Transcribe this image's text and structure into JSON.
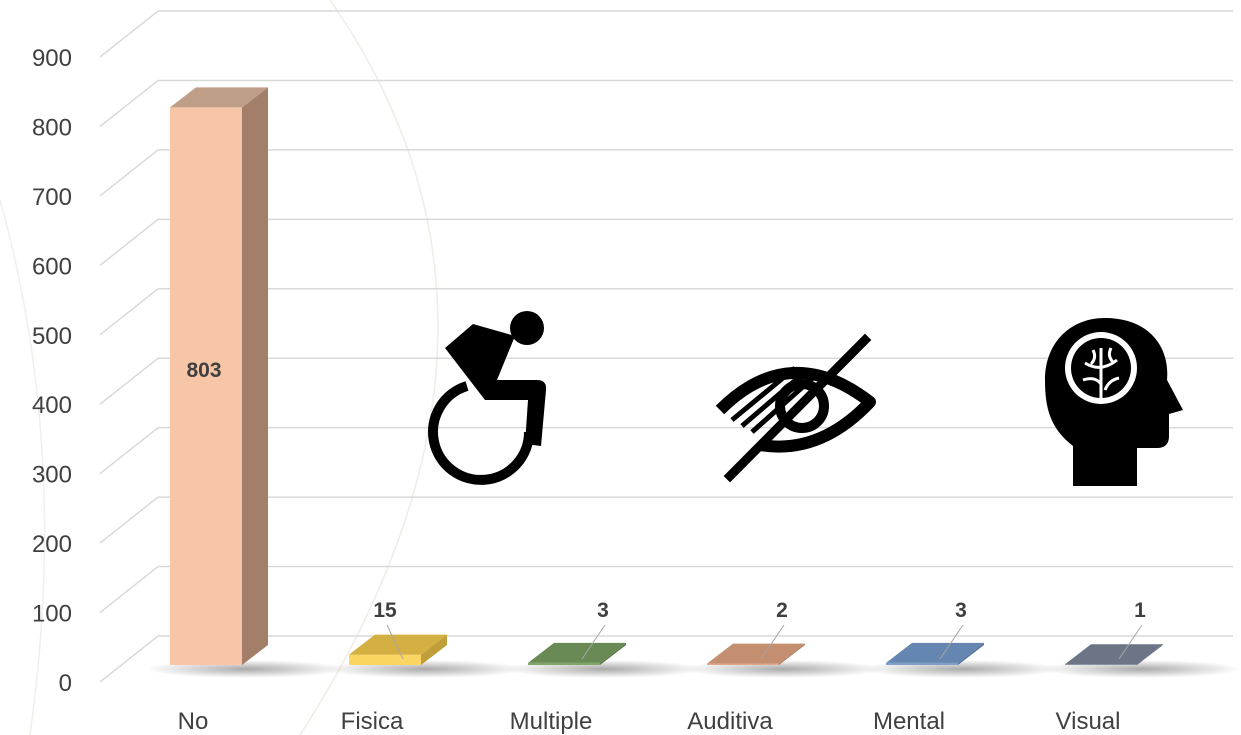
{
  "chart_data": {
    "type": "bar",
    "categories": [
      "No",
      "Fisica",
      "Multiple",
      "Auditiva",
      "Mental",
      "Visual"
    ],
    "values": [
      803,
      15,
      3,
      2,
      3,
      1
    ],
    "data_labels": [
      "803",
      "15",
      "3",
      "2",
      "3",
      "1"
    ],
    "y_ticks": [
      "0",
      "100",
      "200",
      "300",
      "400",
      "500",
      "600",
      "700",
      "800",
      "900"
    ],
    "ylim": [
      0,
      900
    ],
    "grid": true,
    "style": "3d-column",
    "colors": {
      "front": [
        "#f7c6a7",
        "#fbd561",
        "#7fa768",
        "#e0a887",
        "#7d9fc8",
        "#808b9c"
      ],
      "side": [
        "#a37f6a",
        "#c09f38",
        "#597946",
        "#a87f64",
        "#56749b",
        "#5d6676"
      ],
      "top": [
        "#bf9e88",
        "#d4b043",
        "#6a8a55",
        "#c48e70",
        "#6486b0",
        "#6b7586"
      ],
      "grid": "#d9d9d9",
      "text": "#404040"
    },
    "icons": [
      "wheelchair-icon",
      "eye-slash-icon",
      "head-brain-icon"
    ]
  }
}
